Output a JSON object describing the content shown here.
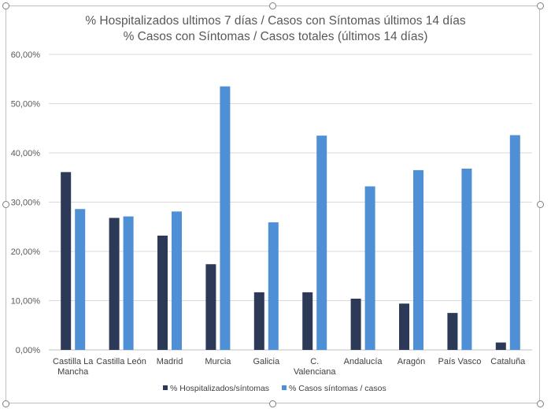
{
  "chart_data": {
    "type": "bar",
    "title": [
      "% Hospitalizados ultimos 7 días / Casos con Síntomas últimos 14 días",
      "% Casos con Síntomas / Casos totales (últimos 14 días)"
    ],
    "categories": [
      [
        "Castilla La",
        "Mancha"
      ],
      [
        "Castilla León"
      ],
      [
        "Madrid"
      ],
      [
        "Murcia"
      ],
      [
        "Galicia"
      ],
      [
        "C.",
        "Valenciana"
      ],
      [
        "Andalucía"
      ],
      [
        "Aragón"
      ],
      [
        "País Vasco"
      ],
      [
        "Cataluña"
      ]
    ],
    "series": [
      {
        "name": "% Hospitalizados/síntomas",
        "color": "#2c3a57",
        "values": [
          36.1,
          26.8,
          23.2,
          17.4,
          11.7,
          11.7,
          10.4,
          9.4,
          7.5,
          1.5
        ]
      },
      {
        "name": "% Casos síntomas / casos",
        "color": "#4f8fd6",
        "values": [
          28.6,
          27.1,
          28.1,
          53.5,
          25.9,
          43.5,
          33.2,
          36.5,
          36.8,
          43.6
        ]
      }
    ],
    "ylim": [
      0,
      60
    ],
    "yticks": [
      0,
      10,
      20,
      30,
      40,
      50,
      60
    ],
    "ytick_labels": [
      "0,00%",
      "10,00%",
      "20,00%",
      "30,00%",
      "40,00%",
      "50,00%",
      "60,00%"
    ],
    "grid": true,
    "legend": "bottom",
    "xlabel": "",
    "ylabel": ""
  }
}
